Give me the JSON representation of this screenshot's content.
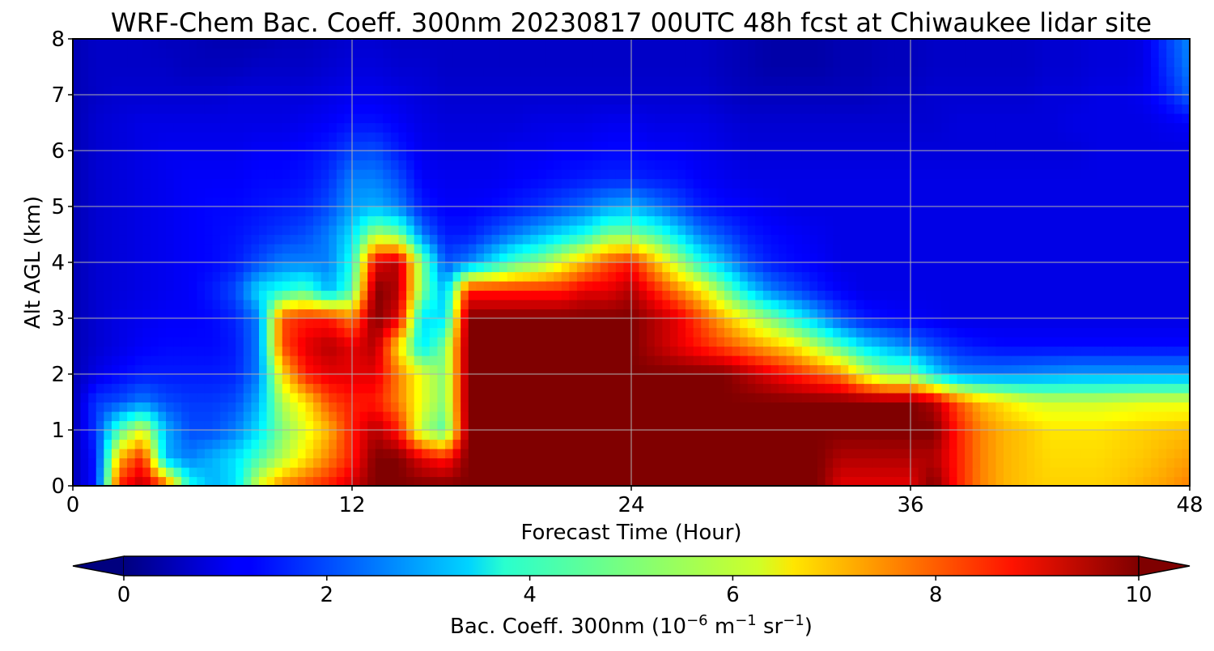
{
  "chart_data": {
    "type": "heatmap",
    "title": "WRF-Chem Bac. Coeff. 300nm  20230817 00UTC 48h fcst at Chiwaukee lidar site",
    "xlabel": "Forecast Time (Hour)",
    "ylabel": "Alt AGL (km)",
    "xlim": [
      0,
      48
    ],
    "ylim": [
      0,
      8
    ],
    "xticks": [
      "0",
      "12",
      "24",
      "36",
      "48"
    ],
    "yticks": [
      "0",
      "1",
      "2",
      "3",
      "4",
      "5",
      "6",
      "7",
      "8"
    ],
    "grid": true,
    "colormap": "jet",
    "colorbar": {
      "label_prefix": "Bac. Coeff. 300nm  (10",
      "label_exp1": "−6",
      "label_mid": " m",
      "label_exp2": "−1",
      "label_mid2": " sr",
      "label_exp3": "−1",
      "label_suffix": ")",
      "range": [
        0,
        10
      ],
      "extend": "both",
      "ticks": [
        "0",
        "2",
        "4",
        "6",
        "8",
        "10"
      ]
    },
    "x": [
      0,
      1,
      2,
      3,
      4,
      5,
      6,
      7,
      8,
      9,
      10,
      11,
      12,
      13,
      14,
      15,
      16,
      17,
      18,
      19,
      20,
      21,
      22,
      23,
      24,
      25,
      26,
      27,
      28,
      29,
      30,
      31,
      32,
      33,
      34,
      35,
      36,
      37,
      38,
      39,
      40,
      41,
      42,
      43,
      44,
      45,
      46,
      47,
      48
    ],
    "y": [
      0,
      0.5,
      1,
      1.5,
      2,
      2.5,
      3,
      3.5,
      4,
      4.5,
      5,
      5.5,
      6,
      6.5,
      7,
      7.5,
      8
    ],
    "z_rows_by_altitude": [
      [
        0.5,
        1.5,
        8.5,
        9.5,
        8.0,
        4.0,
        3.0,
        3.5,
        6.0,
        7.5,
        8.0,
        8.5,
        9.2,
        10,
        10,
        10,
        10,
        10,
        10,
        10,
        10,
        10,
        10,
        10,
        10,
        10,
        10,
        10,
        10,
        10,
        10,
        10,
        10,
        9.0,
        9.0,
        9.0,
        9.0,
        10,
        8.5,
        7.5,
        7.0,
        6.8,
        6.7,
        6.7,
        6.7,
        6.8,
        7.0,
        7.2,
        7.5
      ],
      [
        0.5,
        1.5,
        7.0,
        8.5,
        3.0,
        2.5,
        3.0,
        3.5,
        4.5,
        5.5,
        6.5,
        7.5,
        8.5,
        10,
        10,
        9.0,
        8.5,
        10,
        10,
        10,
        10,
        10,
        10,
        10,
        10,
        10,
        10,
        10,
        10,
        10,
        10,
        10,
        10,
        9.5,
        9.5,
        9.5,
        9.5,
        9.5,
        8.5,
        7.5,
        7.0,
        6.8,
        6.6,
        6.6,
        6.6,
        6.7,
        6.8,
        7.0,
        7.2
      ],
      [
        0.5,
        1.8,
        4.5,
        6.0,
        3.0,
        2.0,
        2.0,
        2.5,
        3.5,
        5.0,
        6.0,
        7.0,
        8.5,
        9.5,
        8.5,
        5.5,
        4.5,
        10,
        10,
        10,
        10,
        10,
        10,
        10,
        10,
        10,
        10,
        10,
        10,
        10,
        10,
        10,
        10,
        10,
        10,
        10,
        10,
        10,
        8.5,
        7.5,
        7.0,
        6.8,
        6.5,
        6.5,
        6.5,
        6.6,
        6.7,
        6.8,
        6.9
      ],
      [
        0.5,
        1.8,
        2.0,
        2.5,
        2.0,
        1.8,
        1.8,
        2.0,
        3.0,
        5.5,
        6.5,
        8.0,
        8.5,
        8.5,
        7.5,
        6.0,
        5.0,
        10,
        10,
        10,
        10,
        10,
        10,
        10,
        10,
        10,
        10,
        10,
        10,
        10,
        10,
        10,
        10,
        10,
        10,
        10,
        10,
        9.5,
        8.0,
        7.0,
        6.5,
        6.0,
        5.8,
        5.8,
        5.8,
        5.9,
        6.0,
        6.0,
        6.0
      ],
      [
        0.5,
        1.0,
        1.3,
        1.5,
        1.5,
        1.5,
        1.5,
        1.6,
        2.5,
        6.5,
        8.5,
        9.0,
        9.0,
        9.0,
        7.5,
        6.0,
        5.0,
        10,
        10,
        10,
        10,
        10,
        10,
        10,
        10,
        10,
        10,
        10,
        10,
        9.5,
        9.0,
        8.5,
        8.0,
        7.5,
        6.0,
        5.0,
        5.0,
        3.5,
        2.6,
        2.5,
        2.5,
        2.6,
        2.7,
        2.8,
        2.8,
        2.8,
        2.8,
        2.8,
        2.8
      ],
      [
        0.5,
        0.8,
        1.0,
        1.2,
        1.3,
        1.3,
        1.3,
        1.5,
        2.5,
        8.0,
        9.0,
        9.5,
        9.0,
        9.5,
        6.5,
        3.5,
        5.0,
        10,
        10,
        10,
        10,
        10,
        10,
        10,
        10,
        9.5,
        9.0,
        8.5,
        8.0,
        7.5,
        7.0,
        6.5,
        5.5,
        4.5,
        3.5,
        3.0,
        2.5,
        2.0,
        1.6,
        1.4,
        1.3,
        1.3,
        1.3,
        1.3,
        1.3,
        1.3,
        1.3,
        1.3,
        1.3
      ],
      [
        0.5,
        0.8,
        1.0,
        1.1,
        1.2,
        1.2,
        1.3,
        1.6,
        2.5,
        8.0,
        8.5,
        8.5,
        7.5,
        10,
        9.0,
        3.5,
        3.5,
        10,
        10,
        10,
        10,
        10,
        10,
        10,
        10,
        9.5,
        9.0,
        8.0,
        7.0,
        6.0,
        5.0,
        4.0,
        3.0,
        2.0,
        1.5,
        1.3,
        1.2,
        1.1,
        1.0,
        1.0,
        1.0,
        1.0,
        1.0,
        1.0,
        1.0,
        1.0,
        1.0,
        1.0,
        1.0
      ],
      [
        0.5,
        0.8,
        0.9,
        1.0,
        1.1,
        1.2,
        1.5,
        2.0,
        3.5,
        4.0,
        4.5,
        3.0,
        4.5,
        10,
        9.5,
        5.0,
        3.0,
        8.5,
        8.5,
        8.5,
        8.5,
        8.5,
        9.0,
        9.0,
        9.5,
        8.5,
        7.5,
        6.5,
        5.0,
        3.5,
        2.5,
        2.0,
        1.5,
        1.2,
        1.0,
        1.0,
        1.0,
        1.0,
        1.0,
        1.0,
        1.0,
        1.0,
        1.0,
        1.0,
        1.0,
        1.0,
        1.0,
        1.0,
        1.0
      ],
      [
        0.5,
        0.8,
        0.9,
        1.0,
        1.1,
        1.2,
        1.3,
        1.5,
        2.0,
        2.5,
        2.5,
        2.5,
        4.0,
        9.0,
        9.5,
        5.0,
        2.0,
        2.5,
        3.5,
        4.5,
        5.0,
        6.0,
        7.0,
        8.0,
        8.5,
        7.0,
        5.5,
        4.0,
        3.0,
        2.0,
        1.5,
        1.3,
        1.2,
        1.0,
        1.0,
        1.0,
        1.0,
        1.0,
        1.0,
        1.0,
        1.0,
        1.0,
        1.0,
        1.0,
        1.0,
        1.0,
        1.0,
        1.0,
        1.0
      ],
      [
        0.5,
        0.8,
        0.9,
        1.0,
        1.1,
        1.2,
        1.3,
        1.4,
        1.6,
        1.8,
        2.0,
        2.5,
        3.5,
        5.5,
        5.0,
        2.5,
        1.5,
        1.5,
        2.0,
        2.5,
        3.0,
        3.5,
        4.0,
        5.0,
        5.0,
        4.5,
        3.5,
        2.5,
        2.0,
        1.5,
        1.3,
        1.2,
        1.1,
        1.0,
        1.0,
        1.0,
        1.0,
        1.0,
        1.0,
        1.0,
        1.0,
        1.0,
        1.0,
        1.0,
        1.0,
        1.0,
        1.0,
        1.0,
        1.0
      ],
      [
        0.5,
        0.8,
        0.9,
        1.0,
        1.1,
        1.2,
        1.3,
        1.3,
        1.4,
        1.5,
        1.6,
        2.0,
        2.8,
        3.0,
        2.5,
        1.5,
        1.2,
        1.2,
        1.3,
        1.5,
        1.7,
        2.0,
        2.3,
        2.8,
        3.0,
        2.5,
        2.0,
        1.5,
        1.3,
        1.2,
        1.1,
        1.0,
        1.0,
        1.0,
        1.0,
        1.0,
        1.0,
        1.0,
        1.0,
        1.0,
        1.0,
        1.0,
        1.0,
        1.0,
        1.0,
        1.0,
        1.0,
        1.0,
        1.0
      ],
      [
        0.5,
        0.8,
        0.9,
        1.0,
        1.1,
        1.2,
        1.2,
        1.2,
        1.3,
        1.3,
        1.4,
        1.7,
        2.5,
        2.5,
        2.0,
        1.2,
        1.1,
        1.1,
        1.1,
        1.2,
        1.3,
        1.4,
        1.5,
        1.6,
        1.6,
        1.5,
        1.4,
        1.2,
        1.1,
        1.0,
        1.0,
        1.0,
        1.0,
        1.0,
        1.0,
        1.0,
        1.0,
        1.0,
        1.0,
        1.0,
        1.0,
        1.0,
        1.0,
        1.0,
        1.0,
        1.0,
        1.0,
        1.0,
        1.0
      ],
      [
        0.5,
        0.8,
        0.9,
        1.0,
        1.1,
        1.1,
        1.1,
        1.1,
        1.2,
        1.2,
        1.3,
        1.5,
        1.9,
        2.0,
        1.5,
        1.1,
        1.0,
        1.0,
        1.0,
        1.1,
        1.1,
        1.2,
        1.2,
        1.3,
        1.3,
        1.2,
        1.2,
        1.1,
        1.0,
        0.9,
        0.9,
        0.9,
        0.9,
        0.9,
        0.9,
        0.9,
        0.9,
        0.9,
        0.9,
        0.9,
        0.9,
        0.9,
        0.9,
        0.9,
        1.0,
        1.0,
        1.0,
        1.0,
        1.0
      ],
      [
        0.5,
        0.8,
        0.9,
        1.0,
        1.0,
        1.0,
        1.0,
        1.0,
        1.0,
        1.0,
        1.1,
        1.2,
        1.4,
        1.4,
        1.2,
        1.0,
        0.9,
        0.9,
        0.9,
        0.9,
        1.0,
        1.0,
        1.0,
        1.1,
        1.1,
        1.0,
        1.0,
        1.0,
        0.9,
        0.8,
        0.8,
        0.8,
        0.8,
        0.8,
        0.8,
        0.8,
        0.8,
        0.8,
        0.9,
        0.9,
        0.9,
        0.9,
        0.9,
        1.0,
        1.0,
        1.0,
        1.0,
        1.1,
        1.2
      ],
      [
        0.5,
        0.7,
        0.8,
        0.8,
        0.8,
        0.8,
        0.8,
        0.9,
        0.9,
        0.9,
        0.9,
        1.0,
        1.1,
        1.1,
        1.0,
        0.9,
        0.8,
        0.8,
        0.8,
        0.8,
        0.8,
        0.8,
        0.8,
        0.8,
        0.8,
        0.8,
        0.8,
        0.8,
        0.7,
        0.6,
        0.6,
        0.6,
        0.6,
        0.6,
        0.6,
        0.7,
        0.7,
        0.8,
        0.8,
        0.8,
        0.8,
        0.8,
        0.9,
        0.9,
        1.0,
        1.0,
        1.1,
        1.5,
        2.2
      ],
      [
        0.5,
        0.7,
        0.7,
        0.7,
        0.7,
        0.6,
        0.6,
        0.6,
        0.7,
        0.7,
        0.7,
        0.8,
        0.9,
        0.9,
        0.8,
        0.8,
        0.7,
        0.7,
        0.7,
        0.7,
        0.7,
        0.7,
        0.7,
        0.7,
        0.7,
        0.7,
        0.7,
        0.7,
        0.6,
        0.5,
        0.4,
        0.4,
        0.4,
        0.5,
        0.5,
        0.6,
        0.6,
        0.7,
        0.7,
        0.7,
        0.7,
        0.7,
        0.8,
        0.8,
        0.9,
        0.9,
        1.0,
        1.7,
        2.5
      ],
      [
        0.5,
        0.7,
        0.7,
        0.7,
        0.6,
        0.6,
        0.5,
        0.5,
        0.5,
        0.6,
        0.6,
        0.7,
        0.8,
        0.8,
        0.7,
        0.7,
        0.7,
        0.7,
        0.7,
        0.7,
        0.7,
        0.7,
        0.7,
        0.7,
        0.7,
        0.7,
        0.7,
        0.7,
        0.6,
        0.5,
        0.4,
        0.4,
        0.4,
        0.5,
        0.5,
        0.6,
        0.6,
        0.7,
        0.7,
        0.7,
        0.7,
        0.7,
        0.8,
        0.8,
        0.9,
        0.9,
        1.0,
        1.8,
        2.6
      ]
    ]
  }
}
